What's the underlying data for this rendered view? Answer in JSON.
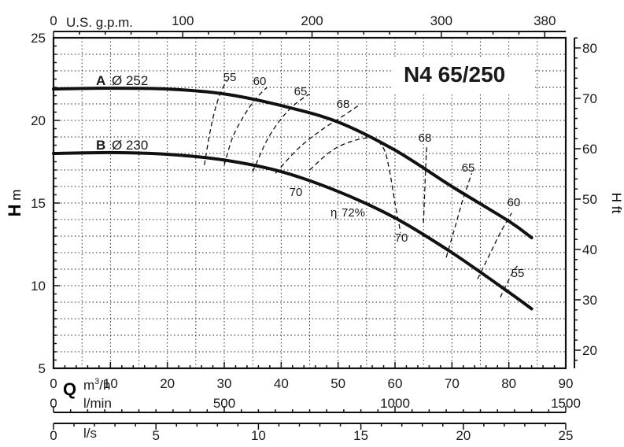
{
  "chart_data": {
    "type": "line",
    "title": "N4 65/250",
    "xlabel": "Q",
    "ylabel_left_letter": "H",
    "ylabel_left_unit": "m",
    "ylabel_right_letter": "H",
    "ylabel_right_unit": "ft",
    "x_unit_m3h": "m3/h",
    "x_unit_lmin": "l/min",
    "x_unit_ls": "l/s",
    "x_unit_gpm": "U.S. g.p.m.",
    "xlim_m3h": [
      0,
      90
    ],
    "ylim_m": [
      5,
      25
    ],
    "ylim_ft": [
      16.4,
      82
    ],
    "grid": true,
    "axes": {
      "m3h_ticks": [
        "0",
        "10",
        "20",
        "30",
        "40",
        "50",
        "60",
        "70",
        "80",
        "90"
      ],
      "m_ticks": [
        "5",
        "10",
        "15",
        "20",
        "25"
      ],
      "ft_ticks": [
        "20",
        "30",
        "40",
        "50",
        "60",
        "70",
        "80"
      ],
      "gpm_ticks": [
        "0",
        "100",
        "200",
        "300",
        "380"
      ],
      "lmin_ticks": [
        "0",
        "500",
        "1000",
        "1500"
      ],
      "ls_ticks": [
        "0",
        "5",
        "10",
        "15",
        "20",
        "25"
      ]
    },
    "series": [
      {
        "letter": "A",
        "diameter": "Ø 252",
        "x": [
          0,
          10,
          20,
          30,
          40,
          50,
          60,
          70,
          80,
          84
        ],
        "y": [
          21.9,
          21.95,
          21.9,
          21.6,
          20.9,
          19.9,
          18.2,
          16.0,
          13.9,
          12.9
        ]
      },
      {
        "letter": "B",
        "diameter": "Ø 230",
        "x": [
          0,
          10,
          20,
          30,
          40,
          50,
          60,
          70,
          80,
          84
        ],
        "y": [
          18.0,
          18.05,
          17.95,
          17.6,
          16.9,
          15.7,
          14.1,
          12.0,
          9.6,
          8.6
        ]
      }
    ],
    "efficiency_labels": [
      "55",
      "60",
      "65",
      "68",
      "70",
      "72%",
      "70",
      "68",
      "65",
      "60",
      "55"
    ],
    "efficiency_prefix": "η",
    "efficiency_curves": [
      {
        "label": "55",
        "x": [
          26.5,
          27.5,
          28.5,
          29.5,
          30.5
        ],
        "y": [
          17.3,
          19.3,
          20.8,
          21.8,
          22.4
        ]
      },
      {
        "label": "60",
        "x": [
          30,
          31.5,
          33.5,
          35.5,
          37.5
        ],
        "y": [
          17.3,
          19.0,
          20.3,
          21.3,
          22.0
        ]
      },
      {
        "label": "65",
        "x": [
          35,
          37.5,
          40,
          42.5,
          45
        ],
        "y": [
          16.9,
          18.8,
          20.1,
          21.0,
          21.6
        ]
      },
      {
        "label": "68",
        "x": [
          39,
          43,
          47,
          51,
          54
        ],
        "y": [
          16.8,
          18.3,
          19.4,
          20.3,
          21.0
        ]
      },
      {
        "label": "70",
        "x": [
          45,
          49,
          53,
          56,
          58,
          59,
          60,
          61
        ],
        "y": [
          17.0,
          18.2,
          18.8,
          18.9,
          18.3,
          17.0,
          15.0,
          13.2
        ]
      },
      {
        "label": "68",
        "x": [
          65,
          65.2,
          65.4,
          65.6
        ],
        "y": [
          13.8,
          15.5,
          17.3,
          18.5
        ]
      },
      {
        "label": "65",
        "x": [
          69,
          70.5,
          72,
          73.5
        ],
        "y": [
          11.7,
          13.5,
          15.3,
          16.8
        ]
      },
      {
        "label": "60",
        "x": [
          74.5,
          76.5,
          78.5,
          80.5
        ],
        "y": [
          10.4,
          11.8,
          13.2,
          14.4
        ]
      },
      {
        "label": "55",
        "x": [
          78.5,
          79.5,
          80.5,
          81.5
        ],
        "y": [
          9.3,
          10.0,
          10.7,
          11.2
        ]
      }
    ]
  }
}
